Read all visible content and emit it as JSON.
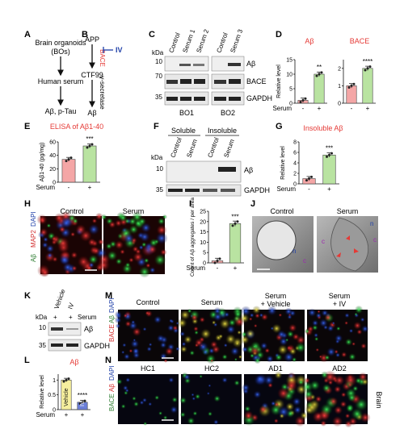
{
  "panel_letters": [
    "A",
    "B",
    "C",
    "D",
    "E",
    "F",
    "G",
    "H",
    "I",
    "J",
    "K",
    "L",
    "M",
    "N"
  ],
  "panelA": {
    "steps": [
      "Brain organoids",
      "(BOs)",
      "Human serum",
      "Aβ, p-Tau"
    ]
  },
  "panelB": {
    "app": "APP",
    "bace": "BACE",
    "iv": "IV",
    "ctf99": "CTF99",
    "gsec": "γ-secretase",
    "abeta": "Aβ"
  },
  "panelC": {
    "kda_label": "kDa",
    "lanes": [
      "Control",
      "Serum 1",
      "Serum 2",
      "Control",
      "Serum 3"
    ],
    "markers": [
      "10",
      "70",
      "35"
    ],
    "bands": [
      "Aβ",
      "BACE",
      "GAPDH"
    ],
    "groups": [
      "BO1",
      "BO2"
    ]
  },
  "panelF": {
    "kda_label": "kDa",
    "headers": [
      "Soluble",
      "Insoluble"
    ],
    "lanes": [
      "Control",
      "Serum",
      "Control",
      "Serum"
    ],
    "markers": [
      "10",
      "35"
    ],
    "bands": [
      "Aβ",
      "GAPDH"
    ]
  },
  "panelH": {
    "labels": [
      "Control",
      "Serum"
    ],
    "side": [
      "Aβ",
      "MAP2",
      "DAPI"
    ]
  },
  "panelJ": {
    "labels": [
      "Control",
      "Serum"
    ],
    "marks": [
      "c",
      "n"
    ]
  },
  "panelK": {
    "kda_label": "kDa",
    "lanes": [
      "Vehicle",
      "IV"
    ],
    "serum_row": [
      "+",
      "+",
      "Serum"
    ],
    "markers": [
      "10",
      "35"
    ],
    "bands": [
      "Aβ",
      "GAPDH"
    ]
  },
  "panelM": {
    "labels": [
      "Control",
      "Serum",
      "Serum",
      "+ Vehicle",
      "Serum",
      "+ IV"
    ],
    "side": [
      "BACE",
      "Aβ",
      "DAPI"
    ]
  },
  "panelN": {
    "labels": [
      "HC1",
      "HC2",
      "AD1",
      "AD2"
    ],
    "side": [
      "BACE",
      "Aβ",
      "DAPI"
    ],
    "right": "Brain"
  },
  "colors": {
    "control_bar": "#f4a6a6",
    "serum_bar": "#b9e3a1",
    "vehicle_bar": "#f6ef9e",
    "iv_bar": "#6b7fd7",
    "title_red": "#e53935",
    "iv_blue": "#1e3fa8"
  },
  "chart_data": [
    {
      "panel": "D",
      "type": "bar",
      "title": "Aβ",
      "ylabel": "Relative level",
      "ylim": [
        0,
        15
      ],
      "yticks": [
        0,
        5,
        10,
        15
      ],
      "categories": [
        "Control",
        "Serum"
      ],
      "values": [
        1,
        10
      ],
      "significance": "**",
      "xrow": {
        "label": "Serum",
        "marks": [
          "-",
          "+"
        ]
      }
    },
    {
      "panel": "D",
      "type": "bar",
      "title": "BACE",
      "ylim": [
        0,
        2.5
      ],
      "yticks": [
        0,
        1,
        2
      ],
      "categories": [
        "Control",
        "Serum"
      ],
      "values": [
        1,
        2
      ],
      "significance": "****",
      "xrow": {
        "marks": [
          "-",
          "+"
        ]
      }
    },
    {
      "panel": "E",
      "type": "bar",
      "title": "ELISA of Aβ1-40",
      "ylabel": "Aβ1-40 (pg/mg)",
      "ylim": [
        0,
        60
      ],
      "yticks": [
        0,
        20,
        40,
        60
      ],
      "categories": [
        "Control",
        "Serum"
      ],
      "values": [
        34,
        54
      ],
      "significance": "***",
      "xrow": {
        "label": "Serum",
        "marks": [
          "-",
          "+"
        ]
      }
    },
    {
      "panel": "G",
      "type": "bar",
      "title": "Insoluble Aβ",
      "ylabel": "Relative level",
      "ylim": [
        0,
        8
      ],
      "yticks": [
        0,
        2,
        4,
        6,
        8
      ],
      "categories": [
        "Control",
        "Serum"
      ],
      "values": [
        1,
        5.5
      ],
      "significance": "***",
      "xrow": {
        "label": "Serum",
        "marks": [
          "-",
          "+"
        ]
      }
    },
    {
      "panel": "I",
      "type": "bar",
      "ylabel": "Count of Aβ aggregates / per area",
      "ylim": [
        0,
        25
      ],
      "yticks": [
        0,
        5,
        10,
        15,
        20,
        25
      ],
      "categories": [
        "Control",
        "Serum"
      ],
      "values": [
        1,
        19
      ],
      "significance": "***",
      "xrow": {
        "label": "Serum",
        "marks": [
          "-",
          "+"
        ]
      }
    },
    {
      "panel": "L",
      "type": "bar",
      "title": "Aβ",
      "ylabel": "Relative level",
      "ylim": [
        0,
        1.2
      ],
      "yticks": [
        0,
        0.5,
        1.0
      ],
      "categories": [
        "Vehicle",
        "IV"
      ],
      "values": [
        1.0,
        0.25
      ],
      "significance": "****",
      "xrow": {
        "label": "Serum",
        "marks": [
          "+",
          "+"
        ]
      }
    }
  ]
}
